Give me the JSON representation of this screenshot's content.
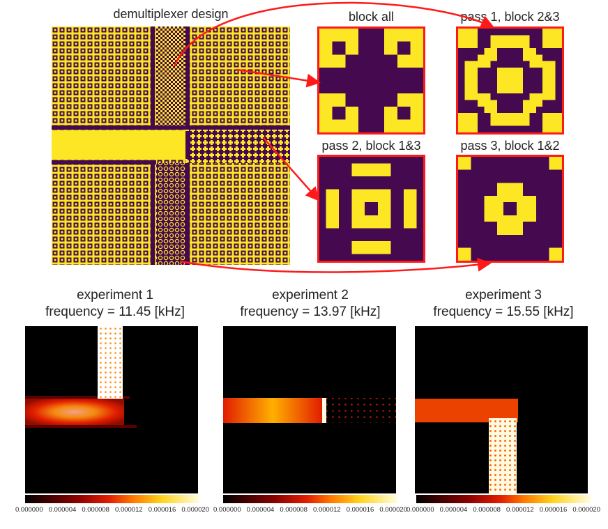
{
  "design": {
    "title": "demultiplexer design",
    "colors": {
      "background": "#44094f",
      "solid": "#fde724",
      "frame": "#ff1a1a"
    }
  },
  "tiles": [
    {
      "id": "block-all",
      "label": "block all"
    },
    {
      "id": "pass1",
      "label": "pass 1, block 2&3"
    },
    {
      "id": "pass2",
      "label": "pass 2, block 1&3"
    },
    {
      "id": "pass3",
      "label": "pass 3, block 1&2"
    }
  ],
  "experiments": [
    {
      "title": "experiment 1",
      "frequency": "frequency = 11.45 [kHz]"
    },
    {
      "title": "experiment 2",
      "frequency": "frequency = 13.97 [kHz]"
    },
    {
      "title": "experiment 3",
      "frequency": "frequency = 15.55 [kHz]"
    }
  ],
  "colorbar": {
    "ticks": [
      "0.000000",
      "0.000004",
      "0.000008",
      "0.000012",
      "0.000016",
      "0.000020"
    ],
    "range": [
      0,
      2e-05
    ],
    "colormap": "hot"
  }
}
